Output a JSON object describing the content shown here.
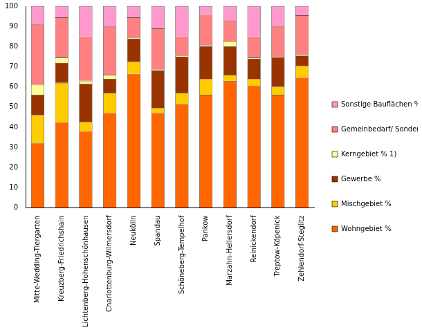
{
  "chart_data": {
    "type": "bar",
    "stacked": true,
    "grid": false,
    "legend": "right",
    "categories": [
      "Mitte-Wedding-Tiergarten",
      "Kreuzberg-Friedrichshain",
      "Lichtenberg-Hohenschönhausen",
      "Charlottenburg-Wilmersdorf",
      "Neukölln",
      "Spandau",
      "Schöneberg-Tempelhof",
      "Pankow",
      "Marzahn-Hellersdorf",
      "Reinickendorf",
      "Treptow-Köpenick",
      "Zehlendorf-Steglitz"
    ],
    "series": [
      {
        "name": "Wohngebiet %",
        "color": "#ff6600",
        "values": [
          32,
          42.5,
          38,
          47,
          66.5,
          47,
          51.5,
          56,
          63,
          60.5,
          56,
          64.5
        ]
      },
      {
        "name": "Mischgebiet %",
        "color": "#ffcc00",
        "values": [
          14,
          19.5,
          4.5,
          10,
          6,
          2.5,
          5.5,
          8,
          3,
          3.5,
          4,
          6
        ]
      },
      {
        "name": "Gewerbe %",
        "color": "#993300",
        "values": [
          10,
          10,
          19,
          7,
          11.5,
          18.5,
          18,
          16,
          14,
          10,
          14.5,
          5
        ]
      },
      {
        "name": "Kerngebiet % 1)",
        "color": "#ffff99",
        "values": [
          5,
          2.5,
          1.5,
          2,
          0.5,
          0.5,
          0.5,
          0.5,
          2.5,
          0.5,
          0.5,
          0.5
        ]
      },
      {
        "name": "Gemeinbedarf/ Sondernutzung %",
        "color": "#ff8080",
        "values": [
          30,
          20,
          22,
          24,
          10,
          20.5,
          9.5,
          15.5,
          10.5,
          10.5,
          15,
          19.5
        ]
      },
      {
        "name": "Sonstige Bauflächen %",
        "color": "#ff99cc",
        "values": [
          9,
          5.5,
          15,
          10,
          5.5,
          11,
          15,
          4,
          7,
          15,
          10,
          4.5
        ]
      }
    ],
    "ylim": [
      0,
      100
    ],
    "yticks": [
      0,
      10,
      20,
      30,
      40,
      50,
      60,
      70,
      80,
      90,
      100
    ]
  }
}
